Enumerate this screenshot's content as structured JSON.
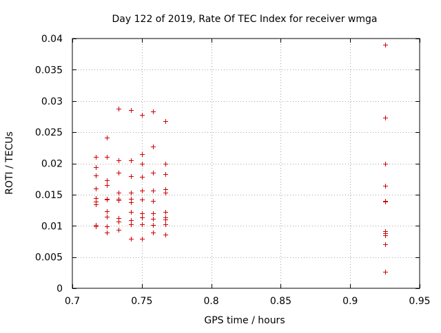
{
  "chart_data": {
    "type": "scatter",
    "title": "Day 122 of 2019, Rate Of TEC Index for receiver wmga",
    "xlabel": "GPS time / hours",
    "ylabel": "ROTI / TECUs",
    "xlim": [
      0.7,
      0.95
    ],
    "ylim": [
      0,
      0.04
    ],
    "xticks": [
      0.7,
      0.75,
      0.8,
      0.85,
      0.9,
      0.95
    ],
    "xtick_labels": [
      "0.7",
      "0.75",
      "0.8",
      "0.85",
      "0.9",
      "0.95"
    ],
    "yticks": [
      0,
      0.005,
      0.01,
      0.015,
      0.02,
      0.025,
      0.03,
      0.035,
      0.04
    ],
    "ytick_labels": [
      "0",
      "0.005",
      "0.01",
      "0.015",
      "0.02",
      "0.025",
      "0.03",
      "0.035",
      "0.04"
    ],
    "grid": true,
    "marker": "+",
    "color": "#cc0000",
    "series": [
      {
        "name": "ROTI",
        "points": [
          [
            0.717,
            0.021
          ],
          [
            0.717,
            0.0194
          ],
          [
            0.717,
            0.0181
          ],
          [
            0.717,
            0.016
          ],
          [
            0.717,
            0.0144
          ],
          [
            0.717,
            0.0139
          ],
          [
            0.717,
            0.0134
          ],
          [
            0.717,
            0.0101
          ],
          [
            0.717,
            0.0099
          ],
          [
            0.725,
            0.0241
          ],
          [
            0.725,
            0.021
          ],
          [
            0.725,
            0.0173
          ],
          [
            0.725,
            0.0165
          ],
          [
            0.725,
            0.0143
          ],
          [
            0.725,
            0.0142
          ],
          [
            0.725,
            0.0123
          ],
          [
            0.725,
            0.0115
          ],
          [
            0.725,
            0.0099
          ],
          [
            0.725,
            0.0089
          ],
          [
            0.733,
            0.0288
          ],
          [
            0.733,
            0.0205
          ],
          [
            0.733,
            0.0185
          ],
          [
            0.733,
            0.0153
          ],
          [
            0.733,
            0.0143
          ],
          [
            0.733,
            0.0141
          ],
          [
            0.733,
            0.0112
          ],
          [
            0.733,
            0.0107
          ],
          [
            0.733,
            0.0094
          ],
          [
            0.742,
            0.0285
          ],
          [
            0.742,
            0.0205
          ],
          [
            0.742,
            0.018
          ],
          [
            0.742,
            0.0153
          ],
          [
            0.742,
            0.0143
          ],
          [
            0.742,
            0.0138
          ],
          [
            0.742,
            0.0122
          ],
          [
            0.742,
            0.0109
          ],
          [
            0.742,
            0.0103
          ],
          [
            0.742,
            0.0079
          ],
          [
            0.75,
            0.0278
          ],
          [
            0.75,
            0.0215
          ],
          [
            0.75,
            0.0199
          ],
          [
            0.75,
            0.0179
          ],
          [
            0.75,
            0.0157
          ],
          [
            0.75,
            0.0142
          ],
          [
            0.75,
            0.012
          ],
          [
            0.75,
            0.0113
          ],
          [
            0.75,
            0.0103
          ],
          [
            0.75,
            0.0079
          ],
          [
            0.758,
            0.0283
          ],
          [
            0.758,
            0.0227
          ],
          [
            0.758,
            0.0185
          ],
          [
            0.758,
            0.0157
          ],
          [
            0.758,
            0.014
          ],
          [
            0.758,
            0.012
          ],
          [
            0.758,
            0.0111
          ],
          [
            0.758,
            0.0101
          ],
          [
            0.758,
            0.0089
          ],
          [
            0.767,
            0.0268
          ],
          [
            0.767,
            0.0199
          ],
          [
            0.767,
            0.0183
          ],
          [
            0.767,
            0.0159
          ],
          [
            0.767,
            0.0153
          ],
          [
            0.767,
            0.0122
          ],
          [
            0.767,
            0.0113
          ],
          [
            0.767,
            0.011
          ],
          [
            0.767,
            0.0102
          ],
          [
            0.767,
            0.0086
          ],
          [
            0.925,
            0.039
          ],
          [
            0.925,
            0.0273
          ],
          [
            0.925,
            0.0199
          ],
          [
            0.925,
            0.0164
          ],
          [
            0.925,
            0.014
          ],
          [
            0.925,
            0.0139
          ],
          [
            0.925,
            0.0091
          ],
          [
            0.925,
            0.0088
          ],
          [
            0.925,
            0.0085
          ],
          [
            0.925,
            0.0071
          ],
          [
            0.925,
            0.0026
          ]
        ]
      }
    ]
  }
}
